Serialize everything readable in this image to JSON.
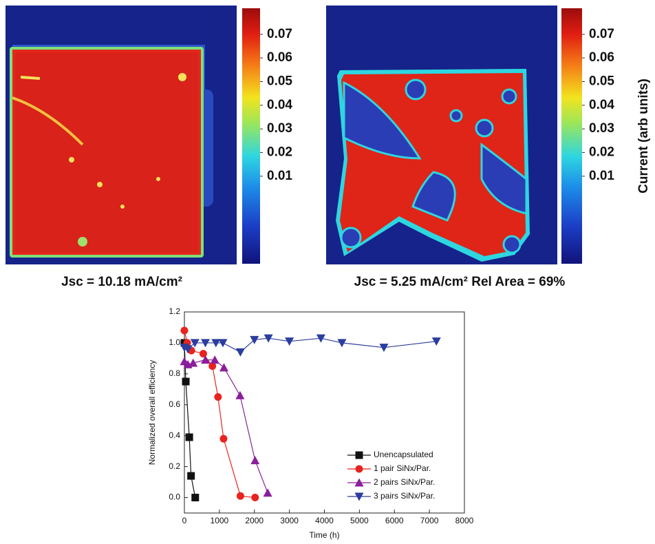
{
  "chart_data": [
    {
      "type": "heatmap",
      "caption": "Jsc = 10.18 mA/cm²",
      "colorbar": {
        "clim": [
          -0.027,
          0.081
        ],
        "ticks": [
          0.01,
          0.02,
          0.03,
          0.04,
          0.05,
          0.06,
          0.07
        ]
      }
    },
    {
      "type": "heatmap",
      "caption": "Jsc = 5.25 mA/cm² Rel Area = 69%",
      "colorbar": {
        "clim": [
          -0.027,
          0.081
        ],
        "ticks": [
          0.01,
          0.02,
          0.03,
          0.04,
          0.05,
          0.06,
          0.07
        ],
        "label": "Current (arb units)"
      }
    },
    {
      "type": "line",
      "xlabel": "Time (h)",
      "ylabel": "Normalized overall efficiency",
      "xlim": [
        0,
        8000
      ],
      "xticks": [
        0,
        1000,
        2000,
        3000,
        4000,
        5000,
        6000,
        7000,
        8000
      ],
      "ylim": [
        -0.1,
        1.2
      ],
      "yticks": [
        {
          "value": 0,
          "label": "0.0"
        },
        0.2,
        0.4,
        0.6,
        0.8,
        {
          "value": 1,
          "label": "1.0"
        },
        1.2
      ],
      "legend": "lower right",
      "series": [
        {
          "name": "Unencapsulated",
          "color": "#111111",
          "marker": "square",
          "x": [
            0,
            40,
            140,
            190,
            310
          ],
          "values": [
            1.0,
            0.75,
            0.39,
            0.14,
            0.0
          ]
        },
        {
          "name": "1 pair SiNx/Par.",
          "color": "#e8231f",
          "marker": "circle",
          "x": [
            0,
            80,
            200,
            540,
            800,
            960,
            1120,
            1600,
            2020
          ],
          "values": [
            1.08,
            1.0,
            0.95,
            0.93,
            0.85,
            0.65,
            0.38,
            0.01,
            0.0
          ]
        },
        {
          "name": "2 pairs SiNx/Par.",
          "color": "#8b1e9c",
          "marker": "triangle-up",
          "x": [
            0,
            100,
            250,
            600,
            870,
            1130,
            1590,
            2020,
            2380
          ],
          "values": [
            0.88,
            0.86,
            0.87,
            0.89,
            0.89,
            0.84,
            0.66,
            0.24,
            0.03
          ]
        },
        {
          "name": "3 pairs SiNx/Par.",
          "color": "#2b3d9e",
          "marker": "triangle-down",
          "x": [
            0,
            100,
            300,
            600,
            900,
            1100,
            1600,
            2000,
            2400,
            3000,
            3900,
            4500,
            5700,
            7200
          ],
          "values": [
            0.97,
            0.96,
            1.0,
            1.0,
            1.0,
            1.0,
            0.94,
            1.02,
            1.03,
            1.01,
            1.03,
            1.0,
            0.97,
            1.01
          ]
        }
      ]
    }
  ]
}
